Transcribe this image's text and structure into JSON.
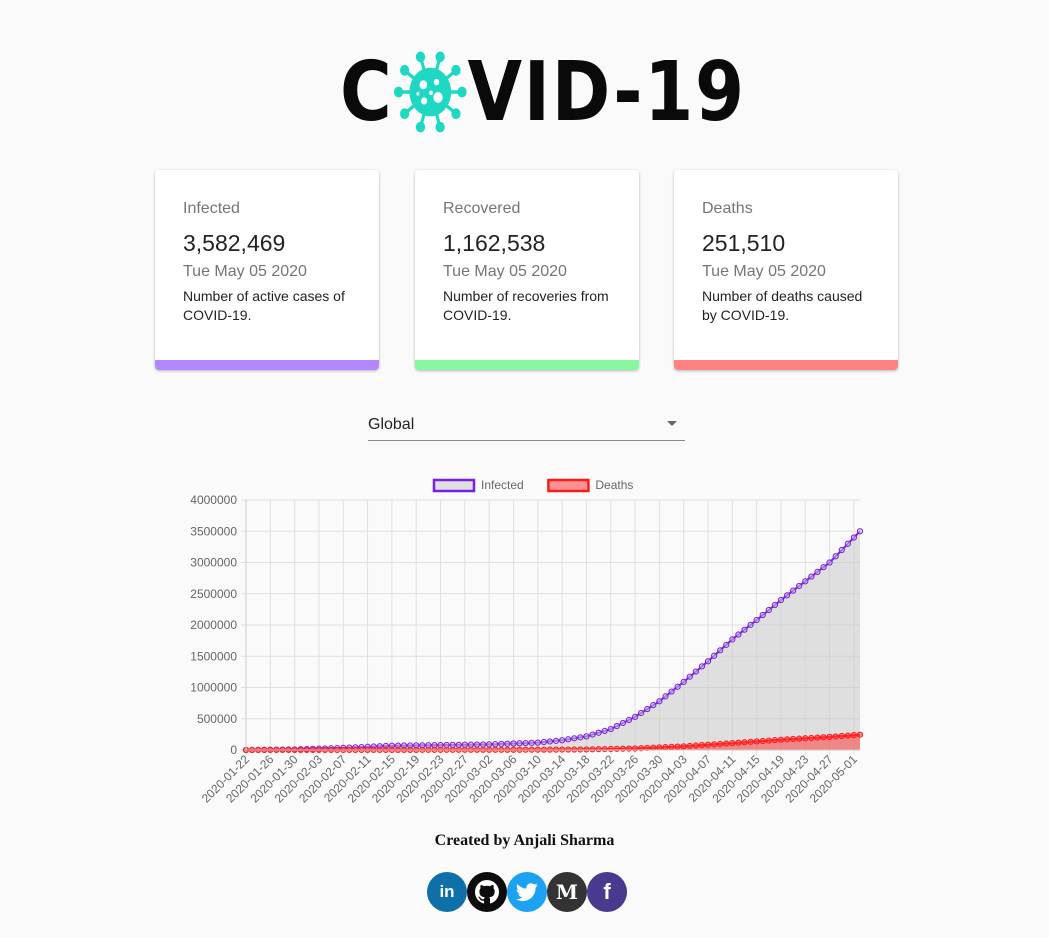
{
  "logo": {
    "text_left": "C",
    "text_right": "VID-19",
    "virus_color": "#1ed8c4"
  },
  "cards": [
    {
      "title": "Infected",
      "value": "3,582,469",
      "date": "Tue May 05 2020",
      "description": "Number of active cases of COVID-19.",
      "color": "#b388ff"
    },
    {
      "title": "Recovered",
      "value": "1,162,538",
      "date": "Tue May 05 2020",
      "description": "Number of recoveries from COVID-19.",
      "color": "#88f7a0"
    },
    {
      "title": "Deaths",
      "value": "251,510",
      "date": "Tue May 05 2020",
      "description": "Number of deaths caused by COVID-19.",
      "color": "#ff8282"
    }
  ],
  "region_select": {
    "value": "Global"
  },
  "chart_data": {
    "type": "line",
    "legend": {
      "position": "top"
    },
    "grid": true,
    "ylim": [
      0,
      4000000
    ],
    "yticks": [
      0,
      500000,
      1000000,
      1500000,
      2000000,
      2500000,
      3000000,
      3500000,
      4000000
    ],
    "x_start": "2020-01-22",
    "x_end": "2020-05-02",
    "x_tick_labels": [
      "2020-01-22",
      "2020-01-26",
      "2020-01-30",
      "2020-02-03",
      "2020-02-07",
      "2020-02-11",
      "2020-02-15",
      "2020-02-19",
      "2020-02-23",
      "2020-02-27",
      "2020-03-02",
      "2020-03-06",
      "2020-03-10",
      "2020-03-14",
      "2020-03-18",
      "2020-03-22",
      "2020-03-26",
      "2020-03-30",
      "2020-04-03",
      "2020-04-07",
      "2020-04-11",
      "2020-04-15",
      "2020-04-19",
      "2020-04-23",
      "2020-04-27",
      "2020-05-01"
    ],
    "series": [
      {
        "name": "Infected",
        "color": "#7b1fe8",
        "fill": "rgba(200,200,200,0.55)",
        "key_points": [
          [
            "2020-01-22",
            555
          ],
          [
            "2020-01-30",
            9000
          ],
          [
            "2020-02-07",
            34000
          ],
          [
            "2020-02-15",
            69000
          ],
          [
            "2020-02-23",
            79000
          ],
          [
            "2020-03-02",
            90000
          ],
          [
            "2020-03-10",
            118000
          ],
          [
            "2020-03-14",
            156000
          ],
          [
            "2020-03-18",
            218000
          ],
          [
            "2020-03-22",
            335000
          ],
          [
            "2020-03-26",
            530000
          ],
          [
            "2020-03-30",
            780000
          ],
          [
            "2020-04-03",
            1090000
          ],
          [
            "2020-04-07",
            1420000
          ],
          [
            "2020-04-11",
            1770000
          ],
          [
            "2020-04-15",
            2080000
          ],
          [
            "2020-04-19",
            2400000
          ],
          [
            "2020-04-23",
            2700000
          ],
          [
            "2020-04-27",
            3000000
          ],
          [
            "2020-05-02",
            3500000
          ]
        ]
      },
      {
        "name": "Deaths",
        "color": "#ff1a1a",
        "fill": "rgba(255,60,60,0.55)",
        "key_points": [
          [
            "2020-01-22",
            17
          ],
          [
            "2020-02-07",
            700
          ],
          [
            "2020-02-23",
            2500
          ],
          [
            "2020-03-10",
            4300
          ],
          [
            "2020-03-18",
            9000
          ],
          [
            "2020-03-26",
            24000
          ],
          [
            "2020-04-03",
            59000
          ],
          [
            "2020-04-11",
            110000
          ],
          [
            "2020-04-19",
            165000
          ],
          [
            "2020-04-27",
            210000
          ],
          [
            "2020-05-02",
            245000
          ]
        ]
      }
    ]
  },
  "footer": {
    "credit": "Created by Anjali Sharma"
  },
  "socials": [
    {
      "name": "linkedin-icon",
      "label": "in",
      "color": "#0f6fa8"
    },
    {
      "name": "github-icon",
      "label": "",
      "color": "#0d0d0d"
    },
    {
      "name": "twitter-icon",
      "label": "",
      "color": "#1da1f2"
    },
    {
      "name": "medium-icon",
      "label": "M",
      "color": "#333333"
    },
    {
      "name": "facebook-icon",
      "label": "f",
      "color": "#4a3a8f"
    }
  ]
}
